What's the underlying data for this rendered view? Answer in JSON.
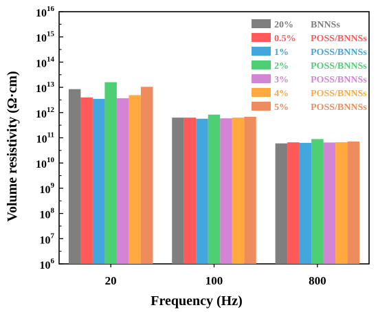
{
  "chart_data": {
    "type": "bar",
    "xlabel": "Frequency (Hz)",
    "ylabel": "Volume resistivity (Ω·cm)",
    "y_scale": "log",
    "ylim": [
      1000000.0,
      1e+16
    ],
    "categories": [
      "20",
      "100",
      "800"
    ],
    "y_ticks": [
      {
        "base": "10",
        "exp": "6"
      },
      {
        "base": "10",
        "exp": "7"
      },
      {
        "base": "10",
        "exp": "8"
      },
      {
        "base": "10",
        "exp": "9"
      },
      {
        "base": "10",
        "exp": "10"
      },
      {
        "base": "10",
        "exp": "11"
      },
      {
        "base": "10",
        "exp": "12"
      },
      {
        "base": "10",
        "exp": "13"
      },
      {
        "base": "10",
        "exp": "14"
      },
      {
        "base": "10",
        "exp": "15"
      },
      {
        "base": "10",
        "exp": "16"
      }
    ],
    "legend_position": "top-right",
    "series": [
      {
        "name": "20% BNNSs",
        "pct": "20%",
        "label": "BNNSs",
        "color": "#7f7f7f",
        "values": [
          8500000000000.0,
          630000000000.0,
          60000000000.0
        ]
      },
      {
        "name": "0.5% POSS/BNNSs",
        "pct": "0.5%",
        "label": "POSS/BNNSs",
        "color": "#ff5a5a",
        "values": [
          4000000000000.0,
          630000000000.0,
          66000000000.0
        ]
      },
      {
        "name": "1% POSS/BNNSs",
        "pct": "1%",
        "label": "POSS/BNNSs",
        "color": "#43a6dc",
        "values": [
          3500000000000.0,
          570000000000.0,
          63000000000.0
        ]
      },
      {
        "name": "2% POSS/BNNSs",
        "pct": "2%",
        "label": "POSS/BNNSs",
        "color": "#4fcf73",
        "values": [
          16000000000000.0,
          830000000000.0,
          89000000000.0
        ]
      },
      {
        "name": "3% POSS/BNNSs",
        "pct": "3%",
        "label": "POSS/BNNSs",
        "color": "#d484d4",
        "values": [
          3700000000000.0,
          590000000000.0,
          65000000000.0
        ]
      },
      {
        "name": "4% POSS/BNNSs",
        "pct": "4%",
        "label": "POSS/BNNSs",
        "color": "#ffa940",
        "values": [
          4900000000000.0,
          630000000000.0,
          67000000000.0
        ]
      },
      {
        "name": "5% POSS/BNNSs",
        "pct": "5%",
        "label": "POSS/BNNSs",
        "color": "#ee8c5e",
        "values": [
          10500000000000.0,
          680000000000.0,
          71000000000.0
        ]
      }
    ]
  }
}
